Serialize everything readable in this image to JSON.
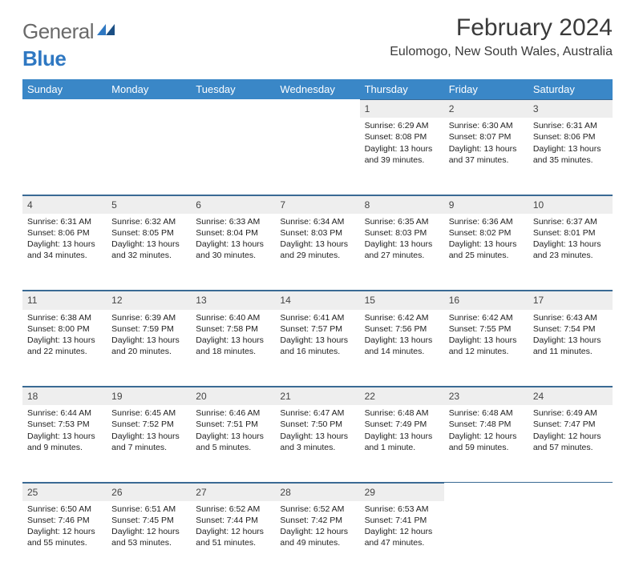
{
  "brand": {
    "text1": "General",
    "text2": "Blue"
  },
  "header": {
    "title": "February 2024",
    "location": "Eulomogo, New South Wales, Australia"
  },
  "colors": {
    "header_bg": "#3a87c7",
    "header_fg": "#ffffff",
    "daynum_bg": "#eeeeee",
    "rule": "#3a6a94",
    "brand_gray": "#6a6a6a",
    "brand_blue": "#2f78c2"
  },
  "weekdays": [
    "Sunday",
    "Monday",
    "Tuesday",
    "Wednesday",
    "Thursday",
    "Friday",
    "Saturday"
  ],
  "weeks": [
    [
      null,
      null,
      null,
      null,
      {
        "n": "1",
        "sr": "6:29 AM",
        "ss": "8:08 PM",
        "dl": "13 hours and 39 minutes."
      },
      {
        "n": "2",
        "sr": "6:30 AM",
        "ss": "8:07 PM",
        "dl": "13 hours and 37 minutes."
      },
      {
        "n": "3",
        "sr": "6:31 AM",
        "ss": "8:06 PM",
        "dl": "13 hours and 35 minutes."
      }
    ],
    [
      {
        "n": "4",
        "sr": "6:31 AM",
        "ss": "8:06 PM",
        "dl": "13 hours and 34 minutes."
      },
      {
        "n": "5",
        "sr": "6:32 AM",
        "ss": "8:05 PM",
        "dl": "13 hours and 32 minutes."
      },
      {
        "n": "6",
        "sr": "6:33 AM",
        "ss": "8:04 PM",
        "dl": "13 hours and 30 minutes."
      },
      {
        "n": "7",
        "sr": "6:34 AM",
        "ss": "8:03 PM",
        "dl": "13 hours and 29 minutes."
      },
      {
        "n": "8",
        "sr": "6:35 AM",
        "ss": "8:03 PM",
        "dl": "13 hours and 27 minutes."
      },
      {
        "n": "9",
        "sr": "6:36 AM",
        "ss": "8:02 PM",
        "dl": "13 hours and 25 minutes."
      },
      {
        "n": "10",
        "sr": "6:37 AM",
        "ss": "8:01 PM",
        "dl": "13 hours and 23 minutes."
      }
    ],
    [
      {
        "n": "11",
        "sr": "6:38 AM",
        "ss": "8:00 PM",
        "dl": "13 hours and 22 minutes."
      },
      {
        "n": "12",
        "sr": "6:39 AM",
        "ss": "7:59 PM",
        "dl": "13 hours and 20 minutes."
      },
      {
        "n": "13",
        "sr": "6:40 AM",
        "ss": "7:58 PM",
        "dl": "13 hours and 18 minutes."
      },
      {
        "n": "14",
        "sr": "6:41 AM",
        "ss": "7:57 PM",
        "dl": "13 hours and 16 minutes."
      },
      {
        "n": "15",
        "sr": "6:42 AM",
        "ss": "7:56 PM",
        "dl": "13 hours and 14 minutes."
      },
      {
        "n": "16",
        "sr": "6:42 AM",
        "ss": "7:55 PM",
        "dl": "13 hours and 12 minutes."
      },
      {
        "n": "17",
        "sr": "6:43 AM",
        "ss": "7:54 PM",
        "dl": "13 hours and 11 minutes."
      }
    ],
    [
      {
        "n": "18",
        "sr": "6:44 AM",
        "ss": "7:53 PM",
        "dl": "13 hours and 9 minutes."
      },
      {
        "n": "19",
        "sr": "6:45 AM",
        "ss": "7:52 PM",
        "dl": "13 hours and 7 minutes."
      },
      {
        "n": "20",
        "sr": "6:46 AM",
        "ss": "7:51 PM",
        "dl": "13 hours and 5 minutes."
      },
      {
        "n": "21",
        "sr": "6:47 AM",
        "ss": "7:50 PM",
        "dl": "13 hours and 3 minutes."
      },
      {
        "n": "22",
        "sr": "6:48 AM",
        "ss": "7:49 PM",
        "dl": "13 hours and 1 minute."
      },
      {
        "n": "23",
        "sr": "6:48 AM",
        "ss": "7:48 PM",
        "dl": "12 hours and 59 minutes."
      },
      {
        "n": "24",
        "sr": "6:49 AM",
        "ss": "7:47 PM",
        "dl": "12 hours and 57 minutes."
      }
    ],
    [
      {
        "n": "25",
        "sr": "6:50 AM",
        "ss": "7:46 PM",
        "dl": "12 hours and 55 minutes."
      },
      {
        "n": "26",
        "sr": "6:51 AM",
        "ss": "7:45 PM",
        "dl": "12 hours and 53 minutes."
      },
      {
        "n": "27",
        "sr": "6:52 AM",
        "ss": "7:44 PM",
        "dl": "12 hours and 51 minutes."
      },
      {
        "n": "28",
        "sr": "6:52 AM",
        "ss": "7:42 PM",
        "dl": "12 hours and 49 minutes."
      },
      {
        "n": "29",
        "sr": "6:53 AM",
        "ss": "7:41 PM",
        "dl": "12 hours and 47 minutes."
      },
      null,
      null
    ]
  ],
  "labels": {
    "sunrise": "Sunrise: ",
    "sunset": "Sunset: ",
    "daylight": "Daylight: "
  }
}
